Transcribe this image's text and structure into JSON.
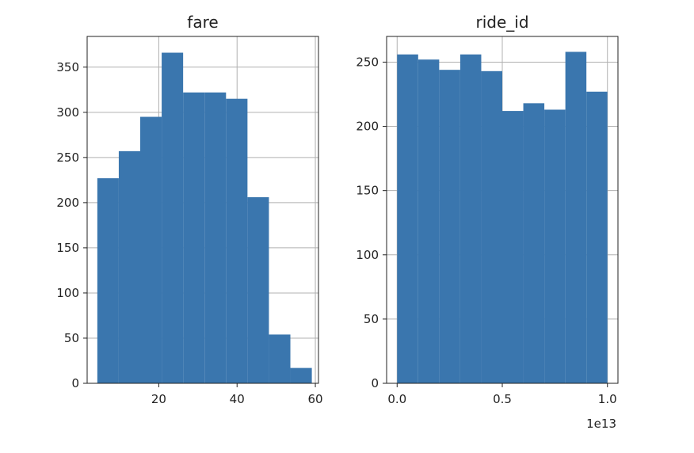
{
  "chart_data": [
    {
      "type": "bar",
      "title": "fare",
      "xlim": [
        1.7,
        60.8
      ],
      "ylim": [
        0,
        384
      ],
      "xticks": [
        20,
        40,
        60
      ],
      "xtick_labels": [
        "20",
        "40",
        "60"
      ],
      "yticks": [
        0,
        50,
        100,
        150,
        200,
        250,
        300,
        350
      ],
      "ytick_labels": [
        "0",
        "50",
        "100",
        "150",
        "200",
        "250",
        "300",
        "350"
      ],
      "bin_edges": [
        4.3,
        9.78,
        15.26,
        20.74,
        26.22,
        31.7,
        37.18,
        42.66,
        48.14,
        53.62,
        59.1
      ],
      "values": [
        227,
        257,
        295,
        366,
        322,
        322,
        315,
        206,
        54,
        17
      ],
      "grid": true,
      "color": "#3a76ae"
    },
    {
      "type": "bar",
      "title": "ride_id",
      "xlim": [
        -0.05,
        1.05
      ],
      "ylim": [
        0,
        270
      ],
      "xticks": [
        0.0,
        0.5,
        1.0
      ],
      "xtick_labels": [
        "0.0",
        "0.5",
        "1.0"
      ],
      "yticks": [
        0,
        50,
        100,
        150,
        200,
        250
      ],
      "ytick_labels": [
        "0",
        "50",
        "100",
        "150",
        "200",
        "250"
      ],
      "x_offset_label": "1e13",
      "bin_edges": [
        0.0,
        0.1,
        0.2,
        0.3,
        0.4,
        0.5,
        0.6,
        0.7,
        0.8,
        0.9,
        1.0
      ],
      "values": [
        256,
        252,
        244,
        256,
        243,
        212,
        218,
        213,
        258,
        227
      ],
      "grid": true,
      "color": "#3a76ae"
    }
  ]
}
